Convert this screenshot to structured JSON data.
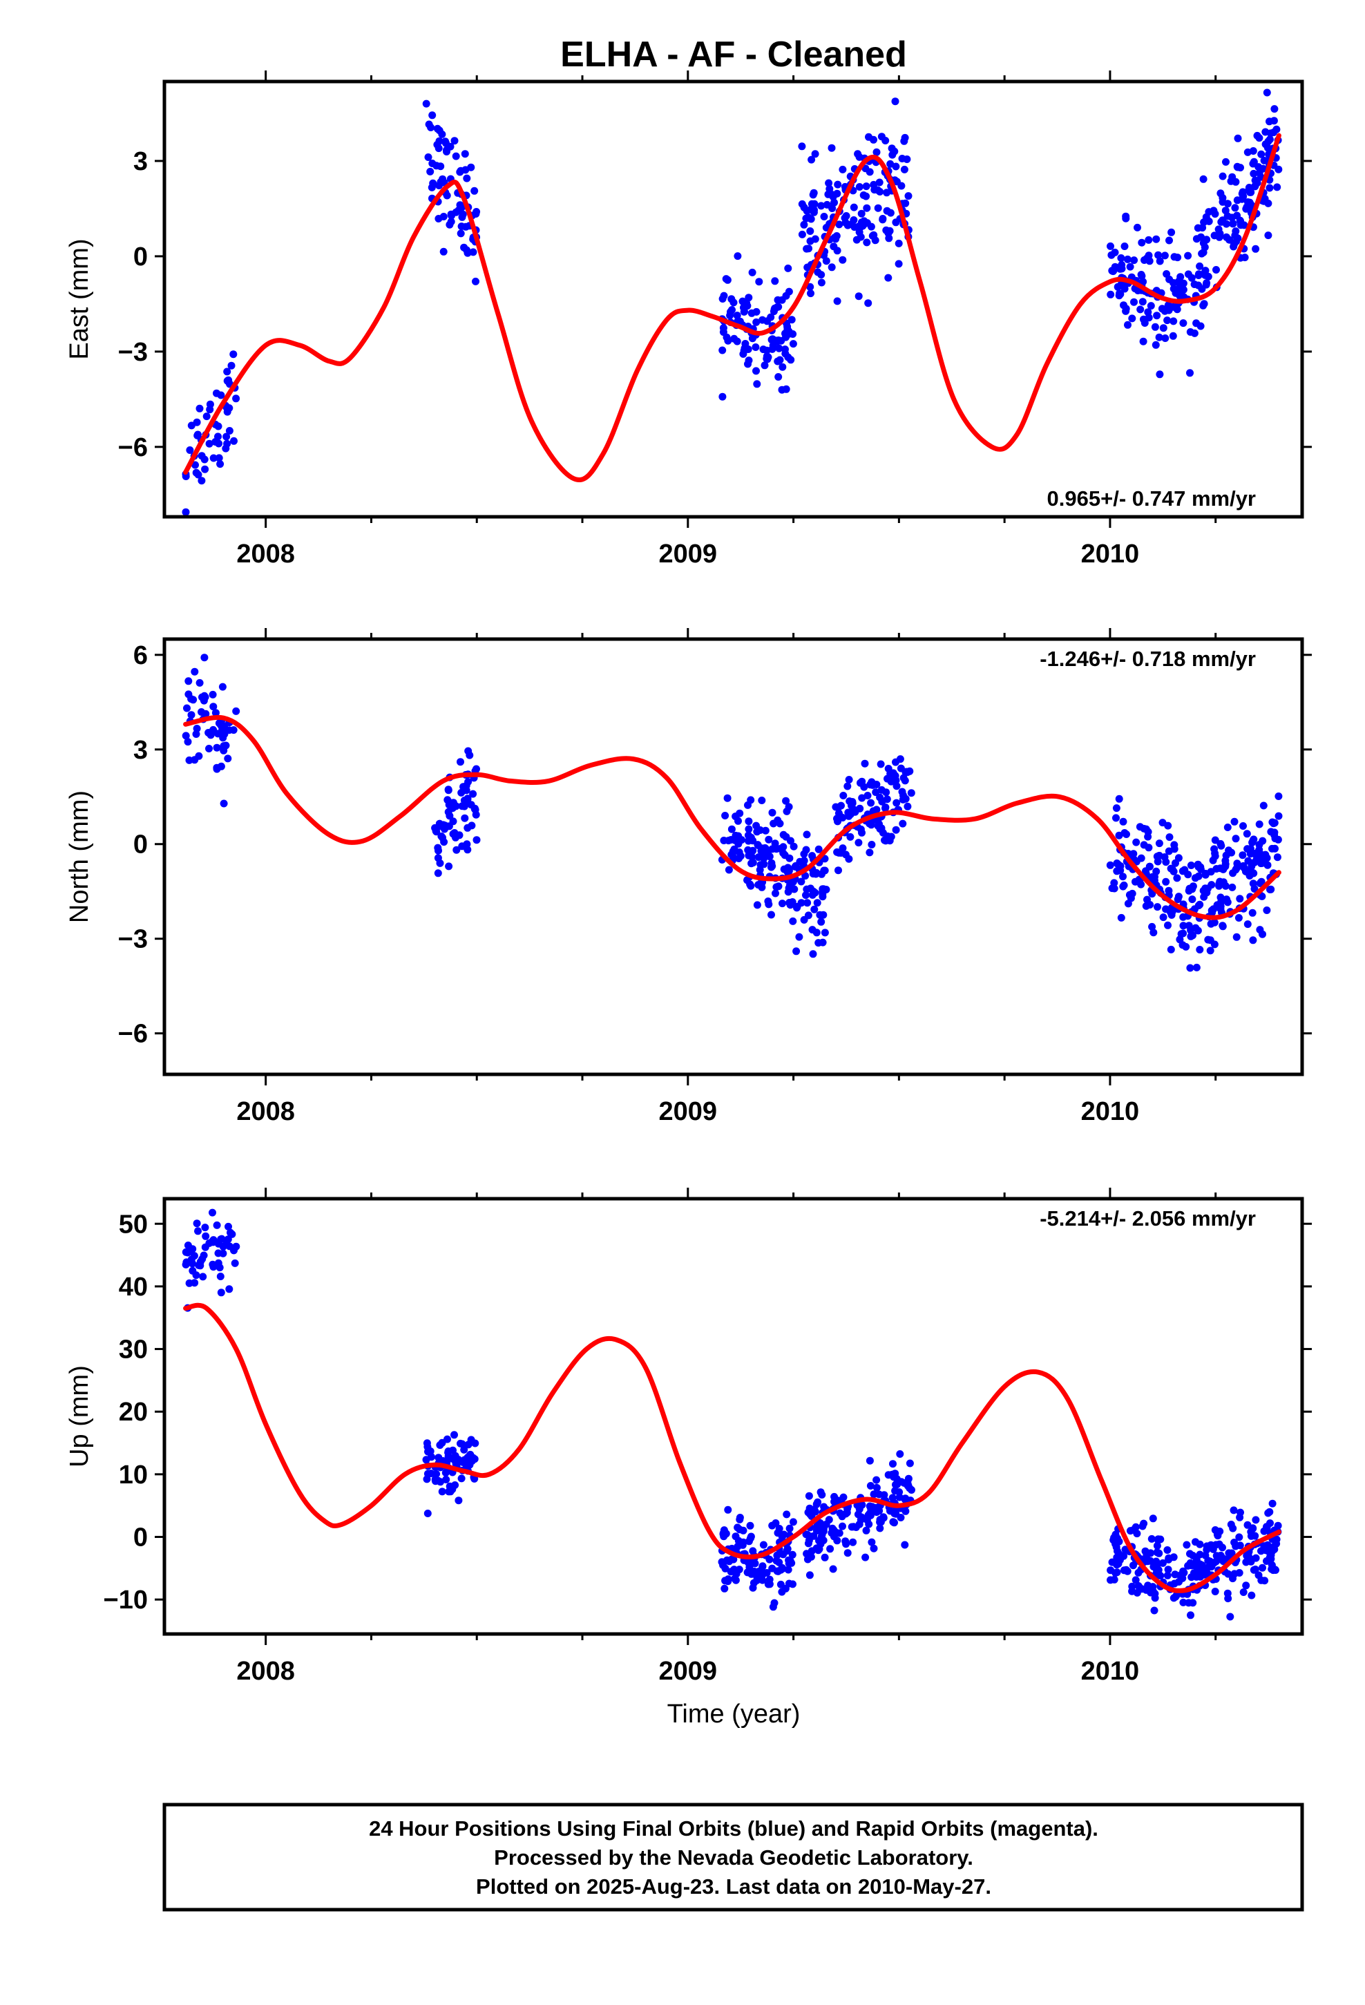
{
  "title": "ELHA  - AF - Cleaned",
  "xlabel": "Time (year)",
  "footer": [
    "24 Hour Positions Using Final Orbits (blue) and Rapid Orbits (magenta).",
    "Processed by the Nevada Geodetic Laboratory.",
    "Plotted on 2025-Aug-23. Last data on 2010-May-27."
  ],
  "colors": {
    "points": "#0000ff",
    "model": "#ff0000",
    "axes": "#000000"
  },
  "chart_data": [
    {
      "type": "scatter",
      "ylabel": "East (mm)",
      "rate": "0.965+/- 0.747 mm/yr",
      "xlim": [
        2007.76,
        2010.455
      ],
      "ylim": [
        -8.2,
        5.5
      ],
      "yticks": [
        3,
        0,
        -3,
        -6
      ],
      "xticks": [
        2008,
        2009,
        2010
      ],
      "clusters": [
        {
          "x": [
            2007.81,
            2007.93
          ],
          "ys": [
            -6.6,
            -4.1
          ],
          "sd": 0.9,
          "n": 50
        },
        {
          "x": [
            2008.38,
            2008.5
          ],
          "ys": [
            2.9,
            1.2
          ],
          "sd": 0.9,
          "n": 75
        },
        {
          "x": [
            2009.08,
            2009.25
          ],
          "ys": [
            -1.8,
            -2.6
          ],
          "sd": 0.75,
          "n": 110
        },
        {
          "x": [
            2009.27,
            2009.53
          ],
          "ys": [
            0.6,
            2.2
          ],
          "sd": 1.05,
          "n": 170
        },
        {
          "x": [
            2010.0,
            2010.2
          ],
          "ys": [
            -0.8,
            -1.4
          ],
          "sd": 0.9,
          "n": 120
        },
        {
          "x": [
            2010.2,
            2010.4
          ],
          "ys": [
            -0.8,
            3.6
          ],
          "sd": 0.9,
          "n": 150
        }
      ],
      "model": [
        [
          2007.81,
          -6.8
        ],
        [
          2007.9,
          -4.6
        ],
        [
          2008.0,
          -2.8
        ],
        [
          2008.08,
          -2.8
        ],
        [
          2008.15,
          -3.3
        ],
        [
          2008.2,
          -3.2
        ],
        [
          2008.28,
          -1.6
        ],
        [
          2008.35,
          0.6
        ],
        [
          2008.43,
          2.2
        ],
        [
          2008.47,
          1.8
        ],
        [
          2008.55,
          -1.8
        ],
        [
          2008.63,
          -5.2
        ],
        [
          2008.73,
          -7.0
        ],
        [
          2008.8,
          -6.2
        ],
        [
          2008.88,
          -3.6
        ],
        [
          2008.95,
          -2.0
        ],
        [
          2009.0,
          -1.7
        ],
        [
          2009.06,
          -1.9
        ],
        [
          2009.12,
          -2.2
        ],
        [
          2009.18,
          -2.4
        ],
        [
          2009.25,
          -1.6
        ],
        [
          2009.33,
          0.6
        ],
        [
          2009.42,
          3.0
        ],
        [
          2009.48,
          2.4
        ],
        [
          2009.55,
          -0.8
        ],
        [
          2009.63,
          -4.5
        ],
        [
          2009.72,
          -6.0
        ],
        [
          2009.78,
          -5.6
        ],
        [
          2009.85,
          -3.4
        ],
        [
          2009.93,
          -1.5
        ],
        [
          2010.0,
          -0.8
        ],
        [
          2010.05,
          -0.8
        ],
        [
          2010.12,
          -1.3
        ],
        [
          2010.18,
          -1.4
        ],
        [
          2010.25,
          -1.0
        ],
        [
          2010.32,
          0.6
        ],
        [
          2010.4,
          3.8
        ]
      ]
    },
    {
      "type": "scatter",
      "ylabel": "North (mm)",
      "rate": "-1.246+/- 0.718 mm/yr",
      "xlim": [
        2007.76,
        2010.455
      ],
      "ylim": [
        -7.3,
        6.5
      ],
      "yticks": [
        6,
        3,
        0,
        -3,
        -6
      ],
      "xticks": [
        2008,
        2009,
        2010
      ],
      "clusters": [
        {
          "x": [
            2007.81,
            2007.93
          ],
          "ys": [
            4.3,
            3.2
          ],
          "sd": 0.9,
          "n": 55
        },
        {
          "x": [
            2008.4,
            2008.5
          ],
          "ys": [
            0.2,
            1.6
          ],
          "sd": 0.7,
          "n": 70
        },
        {
          "x": [
            2009.08,
            2009.33
          ],
          "ys": [
            0.3,
            -1.5
          ],
          "sd": 0.85,
          "n": 180
        },
        {
          "x": [
            2009.35,
            2009.53
          ],
          "ys": [
            0.5,
            1.5
          ],
          "sd": 0.75,
          "n": 120
        },
        {
          "x": [
            2010.0,
            2010.2
          ],
          "ys": [
            -0.3,
            -2.0
          ],
          "sd": 0.9,
          "n": 130
        },
        {
          "x": [
            2010.2,
            2010.4
          ],
          "ys": [
            -2.0,
            -0.3
          ],
          "sd": 0.85,
          "n": 150
        }
      ],
      "model": [
        [
          2007.81,
          3.8
        ],
        [
          2007.9,
          4.0
        ],
        [
          2007.97,
          3.3
        ],
        [
          2008.05,
          1.6
        ],
        [
          2008.15,
          0.3
        ],
        [
          2008.23,
          0.1
        ],
        [
          2008.32,
          0.9
        ],
        [
          2008.42,
          2.0
        ],
        [
          2008.5,
          2.2
        ],
        [
          2008.58,
          2.0
        ],
        [
          2008.67,
          2.0
        ],
        [
          2008.77,
          2.5
        ],
        [
          2008.87,
          2.7
        ],
        [
          2008.95,
          2.1
        ],
        [
          2009.03,
          0.5
        ],
        [
          2009.12,
          -0.8
        ],
        [
          2009.2,
          -1.1
        ],
        [
          2009.28,
          -0.8
        ],
        [
          2009.38,
          0.5
        ],
        [
          2009.48,
          1.0
        ],
        [
          2009.58,
          0.8
        ],
        [
          2009.68,
          0.8
        ],
        [
          2009.78,
          1.3
        ],
        [
          2009.88,
          1.5
        ],
        [
          2009.97,
          0.8
        ],
        [
          2010.05,
          -0.6
        ],
        [
          2010.13,
          -1.7
        ],
        [
          2010.22,
          -2.3
        ],
        [
          2010.3,
          -2.1
        ],
        [
          2010.4,
          -0.9
        ]
      ]
    },
    {
      "type": "scatter",
      "ylabel": "Up (mm)",
      "rate": "-5.214+/- 2.056 mm/yr",
      "xlim": [
        2007.76,
        2010.455
      ],
      "ylim": [
        -15.5,
        54
      ],
      "yticks": [
        50,
        40,
        30,
        20,
        10,
        0,
        -10
      ],
      "xticks": [
        2008,
        2009,
        2010
      ],
      "clusters": [
        {
          "x": [
            2007.81,
            2007.93
          ],
          "ys": [
            45,
            46
          ],
          "sd": 3.0,
          "n": 55
        },
        {
          "x": [
            2008.38,
            2008.5
          ],
          "ys": [
            11,
            13
          ],
          "sd": 2.2,
          "n": 75
        },
        {
          "x": [
            2009.08,
            2009.25
          ],
          "ys": [
            -3,
            -4
          ],
          "sd": 3.2,
          "n": 120
        },
        {
          "x": [
            2009.28,
            2009.53
          ],
          "ys": [
            1,
            6
          ],
          "sd": 3.0,
          "n": 170
        },
        {
          "x": [
            2010.0,
            2010.2
          ],
          "ys": [
            -3,
            -7
          ],
          "sd": 3.2,
          "n": 130
        },
        {
          "x": [
            2010.2,
            2010.4
          ],
          "ys": [
            -5,
            -2
          ],
          "sd": 3.0,
          "n": 140
        }
      ],
      "model": [
        [
          2007.81,
          36.5
        ],
        [
          2007.86,
          36.5
        ],
        [
          2007.93,
          30
        ],
        [
          2008.0,
          18
        ],
        [
          2008.08,
          7
        ],
        [
          2008.14,
          2.5
        ],
        [
          2008.18,
          2
        ],
        [
          2008.25,
          5
        ],
        [
          2008.33,
          10
        ],
        [
          2008.4,
          11.5
        ],
        [
          2008.47,
          10.5
        ],
        [
          2008.53,
          10
        ],
        [
          2008.6,
          14
        ],
        [
          2008.68,
          23
        ],
        [
          2008.76,
          30
        ],
        [
          2008.83,
          31.5
        ],
        [
          2008.9,
          27
        ],
        [
          2008.98,
          12
        ],
        [
          2009.05,
          1
        ],
        [
          2009.1,
          -2.5
        ],
        [
          2009.17,
          -3
        ],
        [
          2009.25,
          0
        ],
        [
          2009.33,
          4
        ],
        [
          2009.42,
          6
        ],
        [
          2009.5,
          5
        ],
        [
          2009.57,
          7
        ],
        [
          2009.65,
          15
        ],
        [
          2009.75,
          24
        ],
        [
          2009.83,
          26.3
        ],
        [
          2009.9,
          22
        ],
        [
          2009.98,
          9
        ],
        [
          2010.05,
          -2
        ],
        [
          2010.12,
          -7.5
        ],
        [
          2010.18,
          -8.5
        ],
        [
          2010.25,
          -6
        ],
        [
          2010.32,
          -2
        ],
        [
          2010.4,
          0.8
        ]
      ]
    }
  ]
}
